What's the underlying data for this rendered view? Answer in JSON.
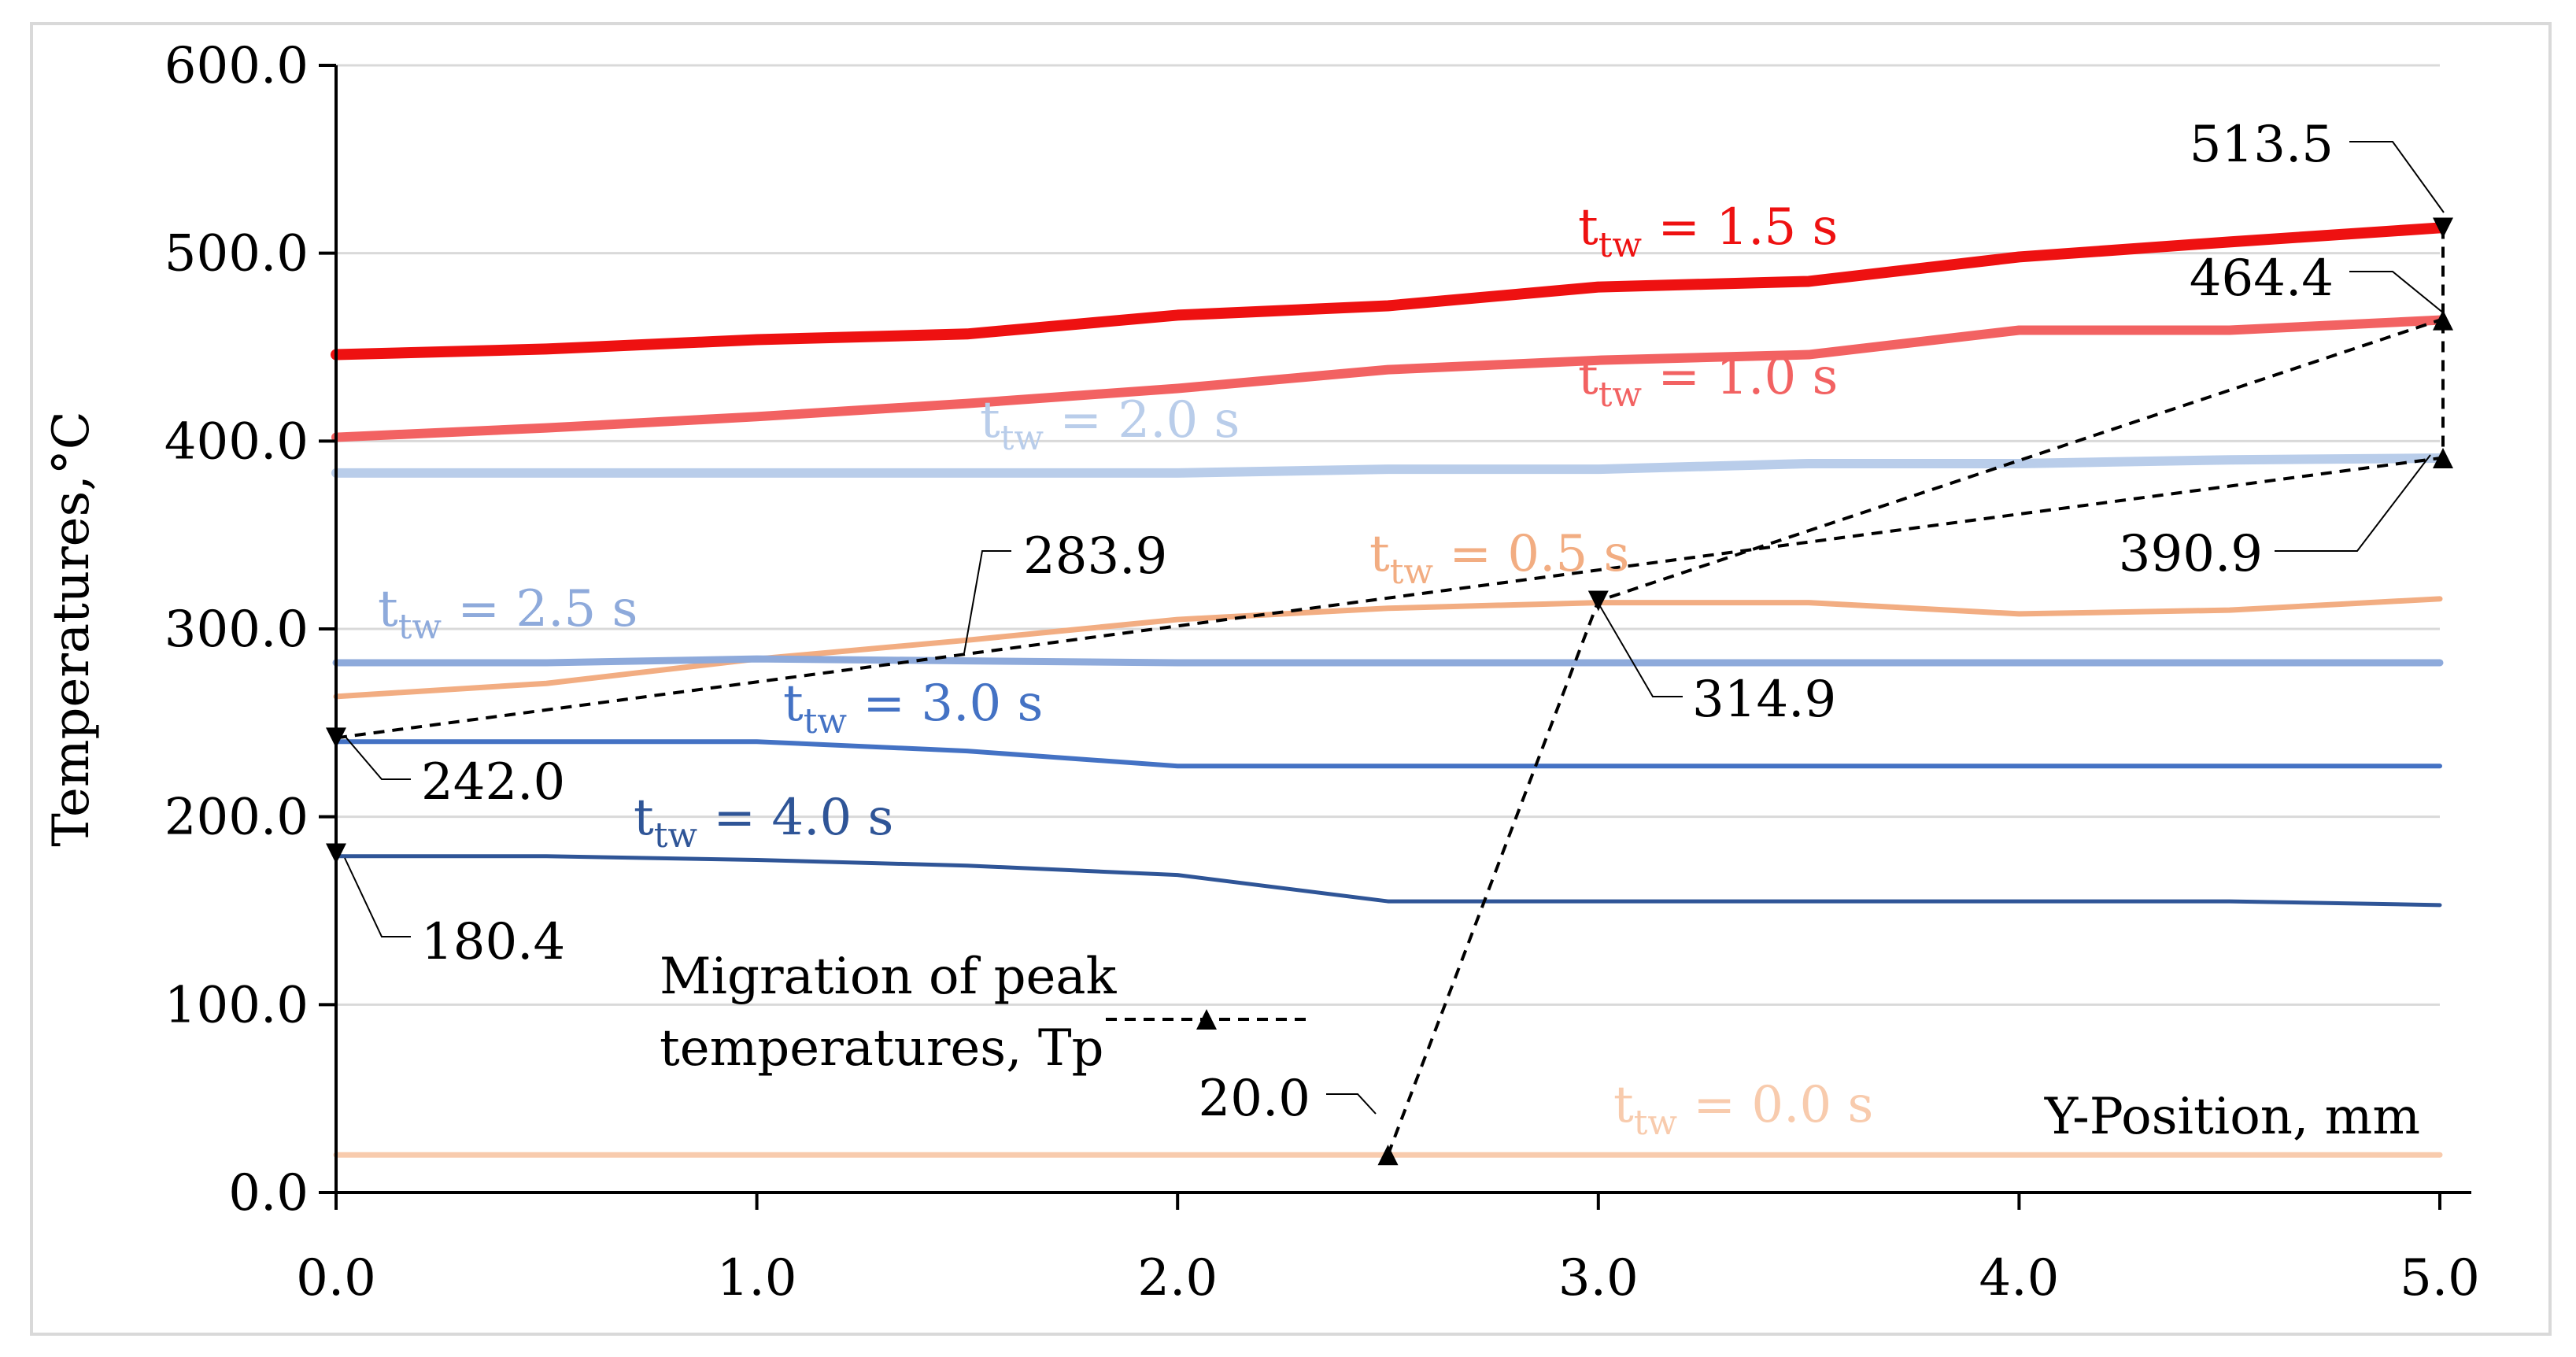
{
  "chart_data": {
    "type": "line",
    "xlabel": "Y-Position, mm",
    "ylabel": "Temperatures,°C",
    "xlim": [
      0,
      5
    ],
    "ylim": [
      0,
      600
    ],
    "xticks": [
      "0.0",
      "1.0",
      "2.0",
      "3.0",
      "4.0",
      "5.0"
    ],
    "yticks": [
      "0.0",
      "100.0",
      "200.0",
      "300.0",
      "400.0",
      "500.0",
      "600.0"
    ],
    "grid": "horizontal",
    "series": [
      {
        "id": "t15",
        "label_main": "t",
        "label_sub": "tw",
        "label_rest": " = 1.5 s",
        "color": "#ee1111",
        "width": 14,
        "x": [
          0,
          0.5,
          1,
          1.5,
          2,
          2.5,
          3,
          3.5,
          4,
          4.5,
          5
        ],
        "y": [
          446,
          449,
          454,
          457,
          467,
          472,
          482,
          485,
          498,
          506,
          513.5
        ]
      },
      {
        "id": "t10",
        "label_main": "t",
        "label_sub": "tw",
        "label_rest": " = 1.0 s",
        "color": "#f26262",
        "width": 12,
        "x": [
          0,
          0.5,
          1,
          1.5,
          2,
          2.5,
          3,
          3.5,
          4,
          4.5,
          5
        ],
        "y": [
          402,
          407,
          413,
          420,
          428,
          438,
          443,
          446,
          459,
          459,
          464.4
        ]
      },
      {
        "id": "t20",
        "label_main": "t",
        "label_sub": "tw",
        "label_rest": " = 2.0 s",
        "color": "#b9cdea",
        "width": 12,
        "x": [
          0,
          0.5,
          1,
          1.5,
          2,
          2.5,
          3,
          3.5,
          4,
          4.5,
          5
        ],
        "y": [
          383,
          383,
          383,
          383,
          383,
          385,
          385,
          388,
          388,
          390,
          390.9
        ]
      },
      {
        "id": "t05",
        "label_main": "t",
        "label_sub": "tw",
        "label_rest": " = 0.5 s",
        "color": "#f2ad82",
        "width": 7,
        "x": [
          0,
          0.5,
          1,
          1.5,
          2,
          2.5,
          3,
          3.5,
          4,
          4.5,
          5
        ],
        "y": [
          264,
          271,
          284,
          294,
          305,
          311,
          314,
          314,
          308,
          310,
          316
        ]
      },
      {
        "id": "t25",
        "label_main": "t",
        "label_sub": "tw",
        "label_rest": " = 2.5 s",
        "color": "#8eaadb",
        "width": 9,
        "x": [
          0,
          0.5,
          1,
          1.5,
          2,
          2.5,
          3,
          3.5,
          4,
          4.5,
          5
        ],
        "y": [
          282,
          282,
          284,
          283,
          282,
          282,
          282,
          282,
          282,
          282,
          282
        ]
      },
      {
        "id": "t30",
        "label_main": "t",
        "label_sub": "tw",
        "label_rest": " = 3.0 s",
        "color": "#4472c4",
        "width": 6,
        "x": [
          0,
          0.5,
          1,
          1.5,
          2,
          2.5,
          3,
          3.5,
          4,
          4.5,
          5
        ],
        "y": [
          240,
          240,
          240,
          235,
          227,
          227,
          227,
          227,
          227,
          227,
          227
        ]
      },
      {
        "id": "t40",
        "label_main": "t",
        "label_sub": "tw",
        "label_rest": " = 4.0 s",
        "color": "#2f5597",
        "width": 5,
        "x": [
          0,
          0.5,
          1,
          1.5,
          2,
          2.5,
          3,
          3.5,
          4,
          4.5,
          5
        ],
        "y": [
          179,
          179,
          177,
          174,
          169,
          155,
          155,
          155,
          155,
          155,
          153
        ]
      },
      {
        "id": "t00",
        "label_main": "t",
        "label_sub": "tw",
        "label_rest": " = 0.0 s",
        "color": "#f8cbad",
        "width": 7,
        "x": [
          0,
          0.5,
          1,
          1.5,
          2,
          2.5,
          3,
          3.5,
          4,
          4.5,
          5
        ],
        "y": [
          20,
          20,
          20,
          20,
          20,
          20,
          20,
          20,
          20,
          20,
          20
        ]
      }
    ],
    "peak_migration": {
      "legend_label_line1": "Migration of peak",
      "legend_label_line2": "temperatures, Tp",
      "points": [
        {
          "x": 2.5,
          "y": 20.0,
          "label": "20.0"
        },
        {
          "x": 3.0,
          "y": 314.9,
          "label": "314.9"
        },
        {
          "x": 5.0,
          "y": 464.4,
          "label": "464.4"
        },
        {
          "x": 5.0,
          "y": 513.5,
          "label": "513.5"
        },
        {
          "x": 5.0,
          "y": 390.9,
          "label": "390.9"
        },
        {
          "x": 0.0,
          "y": 242.0,
          "label": "242.0"
        },
        {
          "x": 0.0,
          "y": 180.4,
          "label": "180.4"
        }
      ],
      "extra_labels": [
        {
          "label": "283.9",
          "x": 1.52,
          "y": 292
        }
      ]
    }
  }
}
